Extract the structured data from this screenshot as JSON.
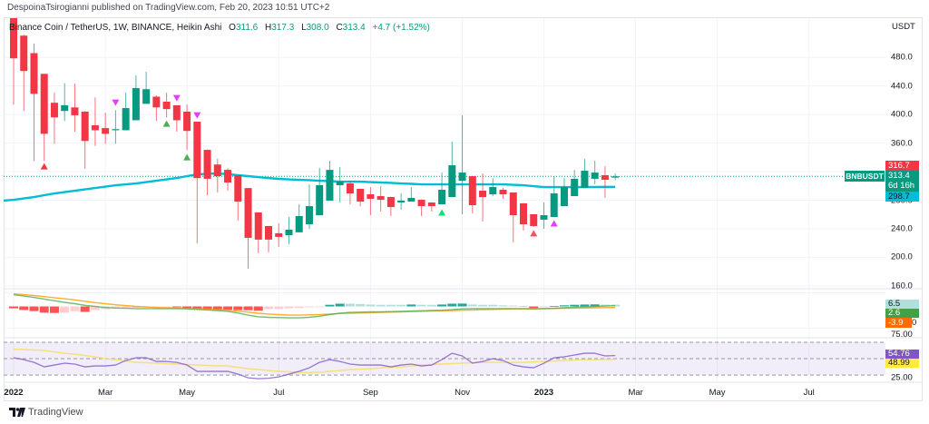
{
  "header": {
    "published": "DespoinaTsirogianni published on TradingView.com, Feb 20, 2023 10:51 UTC+2"
  },
  "legend": {
    "symbol": "Binance Coin / TetherUS, 1W, BINANCE, Heikin Ashi",
    "o_label": "O",
    "o_value": "311.6",
    "h_label": "H",
    "h_value": "317.3",
    "l_label": "L",
    "l_value": "308.0",
    "c_label": "C",
    "c_value": "313.4",
    "change": "+4.7 (+1.52%)"
  },
  "price_axis": {
    "currency": "USDT",
    "ticks": [
      "480.0",
      "440.0",
      "400.0",
      "360.0",
      "320.0",
      "280.0",
      "240.0",
      "200.0",
      "160.0"
    ]
  },
  "price_tags": {
    "tag_316": "316.7",
    "last_price": "313.4",
    "countdown": "6d 16h",
    "ma_value": "298.7",
    "symbol_tag": "BNBUSDT"
  },
  "macd_tags": {
    "histogram": "6.5",
    "macd": "2.6",
    "signal": "-3.9",
    "axis_zero": "0"
  },
  "rsi_tags": {
    "upper": "75.00",
    "rsi": "54.76",
    "rsi_ma": "48.99",
    "lower": "25.00"
  },
  "time_axis": [
    {
      "label": "2022",
      "candle_index": 0,
      "bold": true
    },
    {
      "label": "Mar",
      "candle_index": 9
    },
    {
      "label": "May",
      "candle_index": 17
    },
    {
      "label": "Jul",
      "candle_index": 26
    },
    {
      "label": "Sep",
      "candle_index": 35
    },
    {
      "label": "Nov",
      "candle_index": 44
    },
    {
      "label": "2023",
      "candle_index": 52,
      "bold": true
    },
    {
      "label": "Mar",
      "candle_index": 61
    },
    {
      "label": "May",
      "candle_index": 69
    },
    {
      "label": "Jul",
      "candle_index": 78
    }
  ],
  "footer": {
    "brand": "TradingView"
  },
  "colors": {
    "up": "#089981",
    "down": "#f23645",
    "ma": "#00bcd4",
    "macd_line": "#4caf50",
    "signal_line": "#ff9800",
    "hist_up_strong": "#26a69a",
    "hist_up_weak": "#b2dfdb",
    "hist_down_strong": "#ff5252",
    "hist_down_weak": "#ffcdd2",
    "rsi_line": "#7e57c2",
    "rsi_ma": "#f5dc5a",
    "grid": "#f0f3fa",
    "pane_border": "#e0e3eb"
  },
  "chart_data": {
    "type": "candlestick",
    "title": "Binance Coin / TetherUS, 1W, BINANCE, Heikin Ashi",
    "interval": "1W",
    "ylabel": "USDT",
    "price": {
      "ylim": [
        156,
        535
      ],
      "ticks": [
        480,
        440,
        400,
        360,
        320,
        280,
        240,
        200,
        160
      ],
      "last_price": 313.4,
      "candle_fields": [
        "o",
        "h",
        "l",
        "c"
      ],
      "x": [
        "2022-01-03",
        "2022-01-10",
        "2022-01-17",
        "2022-01-24",
        "2022-01-31",
        "2022-02-07",
        "2022-02-14",
        "2022-02-21",
        "2022-02-28",
        "2022-03-07",
        "2022-03-14",
        "2022-03-21",
        "2022-03-28",
        "2022-04-04",
        "2022-04-11",
        "2022-04-18",
        "2022-04-25",
        "2022-05-02",
        "2022-05-09",
        "2022-05-16",
        "2022-05-23",
        "2022-05-30",
        "2022-06-06",
        "2022-06-13",
        "2022-06-20",
        "2022-06-27",
        "2022-07-04",
        "2022-07-11",
        "2022-07-18",
        "2022-07-25",
        "2022-08-01",
        "2022-08-08",
        "2022-08-15",
        "2022-08-22",
        "2022-08-29",
        "2022-09-05",
        "2022-09-12",
        "2022-09-19",
        "2022-09-26",
        "2022-10-03",
        "2022-10-10",
        "2022-10-17",
        "2022-10-24",
        "2022-10-31",
        "2022-11-07",
        "2022-11-14",
        "2022-11-21",
        "2022-11-28",
        "2022-12-05",
        "2022-12-12",
        "2022-12-19",
        "2022-12-26",
        "2023-01-02",
        "2023-01-09",
        "2023-01-16",
        "2023-01-23",
        "2023-01-30",
        "2023-02-06",
        "2023-02-13",
        "2023-02-20"
      ],
      "candles": [
        [
          535,
          540,
          414,
          478.7
        ],
        [
          510.5,
          512,
          405,
          461
        ],
        [
          486,
          499,
          335,
          429
        ],
        [
          457,
          457,
          335,
          373
        ],
        [
          416.5,
          430.5,
          359,
          396
        ],
        [
          405,
          444,
          391,
          413
        ],
        [
          410,
          443,
          376,
          399
        ],
        [
          404,
          405,
          324,
          363
        ],
        [
          385,
          424,
          356,
          378
        ],
        [
          381,
          402.5,
          359,
          373
        ],
        [
          378,
          406,
          359,
          379.5
        ],
        [
          378,
          430.5,
          378,
          409
        ],
        [
          392,
          455,
          392,
          437
        ],
        [
          415,
          460,
          415,
          435.5
        ],
        [
          425,
          427,
          391,
          410
        ],
        [
          418,
          430.5,
          396,
          407.6
        ],
        [
          413,
          413,
          376,
          392
        ],
        [
          404,
          414,
          350.5,
          377
        ],
        [
          390,
          390,
          219.7,
          311
        ],
        [
          350.5,
          351,
          287,
          310
        ],
        [
          330,
          338,
          290.8,
          313.7
        ],
        [
          322.5,
          325,
          293.3,
          304.8
        ],
        [
          315,
          315,
          251.4,
          278
        ],
        [
          297,
          297,
          184,
          227.3
        ],
        [
          262.9,
          263,
          205.7,
          224.8
        ],
        [
          243.8,
          244,
          207,
          224.8
        ],
        [
          233.7,
          247.6,
          214.6,
          228.6
        ],
        [
          231,
          256.5,
          218.4,
          238.7
        ],
        [
          235,
          274.3,
          235,
          257.8
        ],
        [
          246.3,
          302.2,
          240,
          271.7
        ],
        [
          259,
          325.2,
          259,
          301
        ],
        [
          279.4,
          335.3,
          279.4,
          322.5
        ],
        [
          301,
          326.5,
          276.8,
          306.1
        ],
        [
          303.5,
          307.3,
          274.3,
          289.5
        ],
        [
          295.9,
          296,
          271.7,
          278.1
        ],
        [
          288.3,
          298.4,
          259,
          281.9
        ],
        [
          285.7,
          299.7,
          264.1,
          280.6
        ],
        [
          284.4,
          285,
          257.8,
          270.5
        ],
        [
          276.8,
          289.5,
          266.7,
          279.4
        ],
        [
          278,
          298.4,
          278,
          283.2
        ],
        [
          280.6,
          281,
          257.8,
          271.7
        ],
        [
          276.8,
          277,
          264.1,
          271.7
        ],
        [
          274.3,
          318.7,
          274.3,
          294.6
        ],
        [
          284.4,
          361.9,
          284.4,
          328.9
        ],
        [
          307.3,
          398.7,
          260.3,
          318.7
        ],
        [
          313.7,
          314,
          261.6,
          273
        ],
        [
          293.3,
          317.5,
          250.2,
          284.4
        ],
        [
          288.3,
          310.8,
          285.7,
          298.4
        ],
        [
          294.6,
          297.1,
          281.9,
          288.3
        ],
        [
          290.8,
          291,
          221,
          259
        ],
        [
          275.6,
          276,
          237.5,
          246.3
        ],
        [
          260.3,
          260.5,
          242.5,
          243.8
        ],
        [
          252.7,
          276.8,
          240,
          259
        ],
        [
          256.5,
          313.7,
          256.5,
          289.5
        ],
        [
          271.7,
          311.1,
          271.7,
          298.4
        ],
        [
          285.7,
          322.5,
          285.7,
          310
        ],
        [
          297.1,
          337.8,
          297.1,
          321.3
        ],
        [
          310,
          335.3,
          302.2,
          318.7
        ],
        [
          315,
          327.6,
          283.2,
          308.6
        ],
        [
          311.6,
          317.3,
          308.0,
          313.4
        ]
      ],
      "moving_average": [
        280.6,
        282.5,
        284.4,
        287,
        289.5,
        291.4,
        293.3,
        295.2,
        297.1,
        299,
        300.9,
        302.2,
        303.5,
        305.4,
        307.3,
        309.2,
        311.1,
        313.7,
        316.2,
        317,
        317.5,
        316.5,
        315,
        313.7,
        312.4,
        311,
        309.9,
        309.2,
        308.6,
        308,
        307.3,
        306.7,
        306,
        306,
        306,
        305.4,
        304.8,
        304.2,
        303.5,
        302.9,
        302.2,
        302.2,
        302.2,
        302.2,
        302.2,
        302.2,
        302.2,
        302.2,
        302.2,
        301.5,
        300.9,
        299.6,
        298.4,
        298.4,
        298.4,
        298.4,
        298.4,
        298.5,
        298.6,
        298.7
      ],
      "markers": [
        {
          "i": 3,
          "dir": "up",
          "price": 327.6,
          "color": "#f23645"
        },
        {
          "i": 10,
          "dir": "down",
          "price": 416.5,
          "color": "#e040fb"
        },
        {
          "i": 15,
          "dir": "up",
          "price": 387.3,
          "color": "#4caf50"
        },
        {
          "i": 16,
          "dir": "down",
          "price": 422.9,
          "color": "#e040fb"
        },
        {
          "i": 17,
          "dir": "up",
          "price": 340.3,
          "color": "#4caf50"
        },
        {
          "i": 18,
          "dir": "down",
          "price": 398.7,
          "color": "#e040fb"
        },
        {
          "i": 42,
          "dir": "up",
          "price": 262.9,
          "color": "#00e676"
        },
        {
          "i": 51,
          "dir": "up",
          "price": 233.7,
          "color": "#f7525f"
        },
        {
          "i": 53,
          "dir": "up",
          "price": 247.6,
          "color": "#e040fb"
        }
      ]
    },
    "macd": {
      "ylim": [
        -115,
        65
      ],
      "grid": [
        50,
        -80
      ],
      "histogram": [
        -7,
        -13,
        -17,
        -23,
        -24,
        -23,
        -17,
        -20,
        -13,
        -10,
        -7,
        -6,
        -5,
        -4,
        -3,
        -2,
        -3,
        -6,
        -9,
        -10,
        -11,
        -12,
        -13,
        -14,
        -16,
        -10,
        -10,
        -7,
        -6,
        -3,
        -1,
        6,
        10,
        10,
        9,
        7,
        6,
        6,
        6,
        7,
        6,
        6,
        7,
        10,
        10.5,
        7,
        6,
        6,
        4,
        3,
        1,
        -6,
        -3,
        1,
        4,
        6,
        7,
        7.5,
        6.5,
        6.5
      ],
      "macd": [
        43,
        38,
        33,
        27,
        21,
        15,
        10,
        4,
        0,
        -4,
        -6,
        -7,
        -8,
        -8,
        -8,
        -8,
        -8,
        -9,
        -11,
        -13,
        -15,
        -18,
        -24,
        -32,
        -38,
        -40,
        -41,
        -42,
        -42,
        -40,
        -36,
        -30,
        -25,
        -22,
        -21,
        -20,
        -20,
        -19,
        -18,
        -17,
        -16,
        -15,
        -14,
        -12,
        -9,
        -8,
        -8,
        -8,
        -8,
        -8,
        -8,
        -9,
        -8,
        -7,
        -5,
        -3,
        -2,
        0,
        1.5,
        2.6
      ],
      "signal": [
        46,
        43,
        40,
        36,
        32,
        28,
        24,
        19,
        14,
        10,
        6,
        3,
        0,
        -2,
        -4,
        -5,
        -6,
        -7,
        -8,
        -10,
        -12,
        -14,
        -17,
        -21,
        -25,
        -28,
        -30,
        -32,
        -32,
        -31,
        -30,
        -28,
        -26,
        -25,
        -24,
        -23,
        -22,
        -21,
        -20,
        -19,
        -18,
        -17,
        -16,
        -15,
        -14,
        -13,
        -12,
        -11,
        -10,
        -9.5,
        -9,
        -8.5,
        -8,
        -7.5,
        -7,
        -6.5,
        -6,
        -5,
        -4.5,
        -3.9
      ],
      "last": {
        "histogram": 6.5,
        "macd": 2.6,
        "signal": -3.9
      }
    },
    "rsi": {
      "ylim": [
        14,
        82
      ],
      "bands": [
        75,
        50,
        25
      ],
      "rsi": [
        51.4,
        48.6,
        44.4,
        37.5,
        40.3,
        43.1,
        41.7,
        37.5,
        38.9,
        38.9,
        40.3,
        47.2,
        51.4,
        51.4,
        45.8,
        45.8,
        44.4,
        40.3,
        30.6,
        30.6,
        30.6,
        30.6,
        26.4,
        20.8,
        19.4,
        20.1,
        22.2,
        26.4,
        30.6,
        36.1,
        44.4,
        48.6,
        45.8,
        41.7,
        40.3,
        40.3,
        40.3,
        37.5,
        40.3,
        41.7,
        38.9,
        40.3,
        48.6,
        58.3,
        54.2,
        43.1,
        45.8,
        50,
        47.2,
        40.3,
        37.5,
        36.1,
        43.1,
        51.4,
        52.8,
        55.6,
        58.3,
        58.3,
        54.2,
        54.76
      ],
      "rsi_ma": [
        64.6,
        63.9,
        63.2,
        62.5,
        60.4,
        58.3,
        56.9,
        54.9,
        52.8,
        50,
        48.6,
        46.5,
        44.4,
        43.8,
        43.1,
        42.4,
        41.7,
        41,
        40.3,
        39.6,
        38.9,
        38.9,
        36.8,
        34.7,
        33.3,
        31.9,
        30.6,
        29.9,
        29.2,
        28.5,
        29.2,
        30.6,
        31.9,
        33.3,
        34,
        34.7,
        36.1,
        36.8,
        37.5,
        38.9,
        40.3,
        41,
        41.7,
        42.4,
        43.1,
        43.8,
        44.4,
        44.4,
        44.4,
        44.4,
        44.4,
        45.1,
        45.8,
        46.5,
        47.2,
        47.9,
        48.6,
        48.6,
        48.9,
        48.99
      ],
      "last": {
        "rsi": 54.76,
        "rsi_ma": 48.99
      }
    }
  }
}
